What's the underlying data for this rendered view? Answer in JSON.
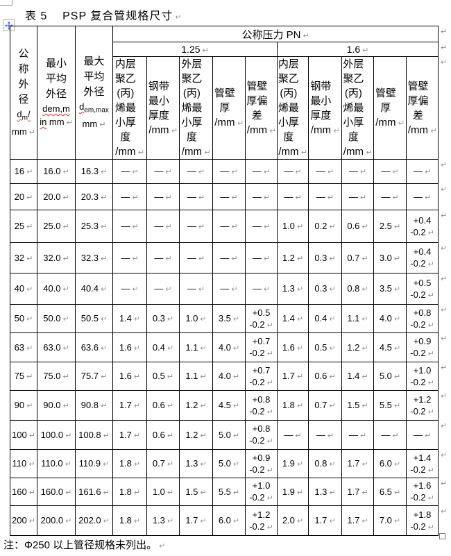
{
  "marks": {
    "pilcrow": "↵"
  },
  "colors": {
    "grid": "#000000",
    "pilcrow_gray": "#8f8f8f",
    "squiggle_red": "#e33028",
    "handle_blue": "#3465d4"
  },
  "page": {
    "title": "表 5    PSP 复合管规格尺寸",
    "note": "注：Φ250 以上管径规格未列出。"
  },
  "table": {
    "top_header": "公称压力 PN",
    "pressure_groups": [
      "1.25",
      "1.6"
    ],
    "stub_headers": [
      {
        "name": "公\n称\n外\n径",
        "symbol_base": "d",
        "symbol_sub": "m",
        "symbol_tail": "/",
        "unit": "mm"
      },
      {
        "name": "最小\n平均\n外径",
        "symbol_line1": "dem,m",
        "symbol_line2_wavy": "in",
        "symbol_line2_rest": " mm"
      },
      {
        "name": "最大\n平均\n外径",
        "symbol_base": "d",
        "symbol_sub": "em,max",
        "unit": "mm"
      }
    ],
    "sub_headers": [
      "内层\n聚乙\n(丙)\n烯最\n小厚\n度\n/mm",
      "钢带\n最小\n厚度\n/mm",
      "外层\n聚乙\n(丙)\n烯最\n小厚\n度\n/mm",
      "管壁\n厚\n/mm",
      "管壁\n厚偏\n差\n/mm"
    ],
    "rows": [
      {
        "dn": "16",
        "min_avg": "16.0",
        "max_avg": "16.3",
        "pn125": [
          "—",
          "—",
          "—",
          "—",
          "—"
        ],
        "pn16": [
          "—",
          "—",
          "—",
          "—",
          "—"
        ]
      },
      {
        "dn": "20",
        "min_avg": "20.0",
        "max_avg": "20.3",
        "pn125": [
          "—",
          "—",
          "—",
          "—",
          "—"
        ],
        "pn16": [
          "—",
          "—",
          "—",
          "—",
          "—"
        ]
      },
      {
        "dn": "25",
        "min_avg": "25.0",
        "max_avg": "25.3",
        "pn125": [
          "—",
          "—",
          "—",
          "—",
          "—"
        ],
        "pn16": [
          "1.0",
          "0.2",
          "0.6",
          "2.5",
          "+0.4\n-0.2"
        ]
      },
      {
        "dn": "32",
        "min_avg": "32.0",
        "max_avg": "32.3",
        "pn125": [
          "—",
          "—",
          "—",
          "—",
          "—"
        ],
        "pn16": [
          "1.2",
          "0.3",
          "0.7",
          "3.0",
          "+0.4\n-0.2"
        ]
      },
      {
        "dn": "40",
        "min_avg": "40.0",
        "max_avg": "40.4",
        "pn125": [
          "—",
          "—",
          "—",
          "—",
          "—"
        ],
        "pn16": [
          "1.3",
          "0.3",
          "0.8",
          "3.5",
          "+0.5\n-0.2"
        ]
      },
      {
        "dn": "50",
        "min_avg": "50.0",
        "max_avg": "50.5",
        "pn125": [
          "1.4",
          "0.3",
          "1.0",
          "3.5",
          "+0.5\n-0.2"
        ],
        "pn16": [
          "1.4",
          "0.4",
          "1.1",
          "4.0",
          "+0.8\n-0.2"
        ]
      },
      {
        "dn": "63",
        "min_avg": "63.0",
        "max_avg": "63.6",
        "pn125": [
          "1.6",
          "0.4",
          "1.1",
          "4.0",
          "+0.7\n-0.2"
        ],
        "pn16": [
          "1.6",
          "0.5",
          "1.2",
          "4.5",
          "+0.9\n-0.2"
        ]
      },
      {
        "dn": "75",
        "min_avg": "75.0",
        "max_avg": "75.7",
        "pn125": [
          "1.6",
          "0.5",
          "1.1",
          "4.0",
          "+0.7\n-0.2"
        ],
        "pn16": [
          "1.7",
          "0.6",
          "1.4",
          "5.0",
          "+1.0\n-0.2"
        ]
      },
      {
        "dn": "90",
        "min_avg": "90.0",
        "max_avg": "90.8",
        "pn125": [
          "1.7",
          "0.6",
          "1.2",
          "4.5",
          "+0.8\n-0.2"
        ],
        "pn16": [
          "1.8",
          "0.7",
          "1.5",
          "5.5",
          "+1.2\n-0.2"
        ]
      },
      {
        "dn": "100",
        "min_avg": "100.0",
        "max_avg": "100.8",
        "pn125": [
          "1.7",
          "0.6",
          "1.2",
          "5.0",
          "+0.8\n-0.2"
        ],
        "pn16": [
          "—",
          "—",
          "—",
          "—",
          "—"
        ]
      },
      {
        "dn": "110",
        "min_avg": "110.0",
        "max_avg": "110.9",
        "pn125": [
          "1.8",
          "0.7",
          "1.3",
          "5.0",
          "+0.9\n-0.2"
        ],
        "pn16": [
          "1.9",
          "0.8",
          "1.7",
          "6.0",
          "+1.4\n-0.2"
        ]
      },
      {
        "dn": "160",
        "min_avg": "160.0",
        "max_avg": "161.6",
        "pn125": [
          "1.8",
          "1.0",
          "1.5",
          "5.5",
          "+1.0\n-0.2"
        ],
        "pn16": [
          "1.9",
          "1.3",
          "1.7",
          "6.5",
          "+1.6\n-0.2"
        ]
      },
      {
        "dn": "200",
        "min_avg": "200.0",
        "max_avg": "202.0",
        "pn125": [
          "1.8",
          "1.3",
          "1.7",
          "6.0",
          "+1.2\n-0.2"
        ],
        "pn16": [
          "2.0",
          "1.7",
          "1.7",
          "7.0",
          "+1.8\n-0.2"
        ]
      }
    ]
  }
}
